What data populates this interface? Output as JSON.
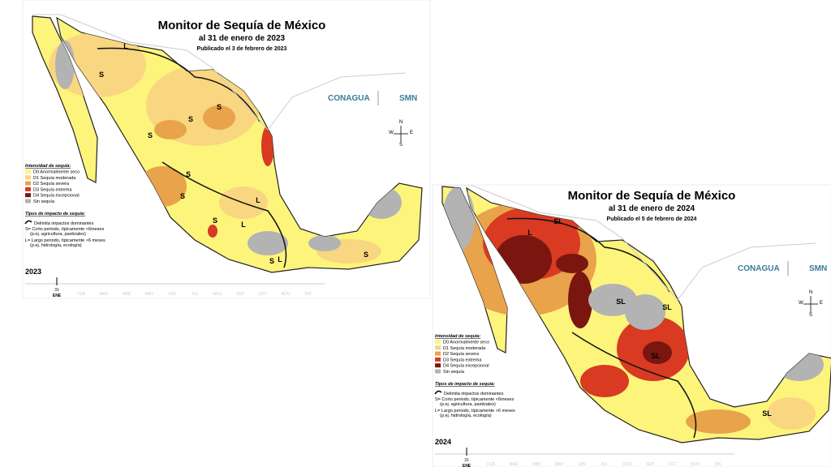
{
  "maps": [
    {
      "title": "Monitor de Sequía de México",
      "date": "al 31 de enero de 2023",
      "published": "Publicado el 3 de febrero de 2023",
      "legend_title": "Intensidad de sequía:",
      "legend": [
        {
          "label": "D0 Anormalmente seco",
          "color": "#fdf47c"
        },
        {
          "label": "D1 Sequía moderada",
          "color": "#f9d680"
        },
        {
          "label": "D2 Sequía severa",
          "color": "#e9a34a"
        },
        {
          "label": "D3 Sequía extrema",
          "color": "#d83a22"
        },
        {
          "label": "D4 Sequía excepcional",
          "color": "#7a1510"
        },
        {
          "label": "Sin sequía",
          "color": "#b3b3b3"
        }
      ],
      "impact_title": "Tipos de impacto de sequía:",
      "impact_items": [
        "Delimita impactos dominantes",
        "S= Corto periodo, típicamente <6meses",
        "(p.ej. agricultura, pastizales)",
        "L= Largo periodo, típicamente >6 meses",
        "(p.ej. hidrología, ecología)"
      ],
      "year": "2023",
      "day": "31",
      "month": "ENE",
      "months": [
        "FEB",
        "MAR",
        "ABR",
        "MAY",
        "JUN",
        "JUL",
        "AGO",
        "SEP",
        "OCT",
        "NOV",
        "DIC"
      ],
      "region_labels": [
        "L",
        "S",
        "S",
        "S",
        "S",
        "S",
        "S",
        "L",
        "L",
        "S",
        "S",
        "L",
        "S"
      ],
      "logos": [
        "CONAGUA",
        "SMN"
      ],
      "compass": [
        "N",
        "W",
        "E",
        "S"
      ]
    },
    {
      "title": "Monitor de Sequía de México",
      "date": "al 31 de enero de 2024",
      "published": "Publicado el 5 de febrero de 2024",
      "legend_title": "Intensidad de sequía:",
      "legend": [
        {
          "label": "D0 Anormalmente seco",
          "color": "#fdf47c"
        },
        {
          "label": "D1 Sequía moderada",
          "color": "#f9d680"
        },
        {
          "label": "D2 Sequía severa",
          "color": "#e9a34a"
        },
        {
          "label": "D3 Sequía extrema",
          "color": "#d83a22"
        },
        {
          "label": "D4 Sequía excepcional",
          "color": "#7a1510"
        },
        {
          "label": "Sin sequía",
          "color": "#b3b3b3"
        }
      ],
      "impact_title": "Tipos de impacto de sequía:",
      "impact_items": [
        "Delimita impactos dominantes",
        "S= Corto periodo, típicamente <6meses",
        "(p.ej. agricultura, pastizales)",
        "L= Largo periodo, típicamente >6 meses",
        "(p.ej. hidrología, ecología)"
      ],
      "year": "2024",
      "day": "31",
      "month": "ENE",
      "months": [
        "FEB",
        "MAR",
        "ABR",
        "MAY",
        "JUN",
        "JUL",
        "AGO",
        "SEP",
        "OCT",
        "NOV",
        "DIC"
      ],
      "region_labels": [
        "L",
        "SL",
        "SL",
        "SL",
        "SL",
        "SL"
      ],
      "logos": [
        "CONAGUA",
        "SMN"
      ],
      "compass": [
        "N",
        "W",
        "E",
        "S"
      ]
    }
  ]
}
